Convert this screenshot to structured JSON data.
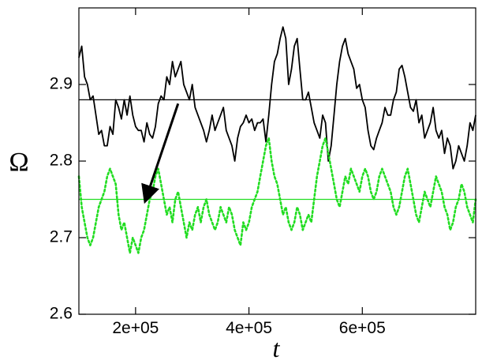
{
  "chart_data": {
    "type": "line",
    "xlabel": "t",
    "ylabel": "Ω",
    "xlim": [
      100000,
      800000
    ],
    "ylim": [
      2.6,
      3.0
    ],
    "x_ticks": [
      200000,
      400000,
      600000
    ],
    "x_tick_labels": [
      "2e+05",
      "4e+05",
      "6e+05"
    ],
    "y_ticks": [
      2.6,
      2.7,
      2.8,
      2.9
    ],
    "y_tick_labels": [
      "2.6",
      "2.7",
      "2.8",
      "2.9"
    ],
    "grid": false,
    "legend": "none",
    "series": [
      {
        "color": "#000000",
        "style": "solid",
        "x": [
          100000,
          105000,
          110000,
          115000,
          120000,
          125000,
          130000,
          135000,
          140000,
          145000,
          150000,
          155000,
          160000,
          165000,
          170000,
          175000,
          180000,
          185000,
          190000,
          195000,
          200000,
          205000,
          210000,
          215000,
          220000,
          225000,
          230000,
          235000,
          240000,
          245000,
          250000,
          255000,
          260000,
          265000,
          270000,
          275000,
          280000,
          285000,
          290000,
          295000,
          300000,
          305000,
          310000,
          315000,
          320000,
          325000,
          330000,
          335000,
          340000,
          345000,
          350000,
          355000,
          360000,
          365000,
          370000,
          375000,
          380000,
          385000,
          390000,
          395000,
          400000,
          405000,
          410000,
          415000,
          420000,
          425000,
          430000,
          435000,
          440000,
          445000,
          450000,
          455000,
          460000,
          465000,
          470000,
          475000,
          480000,
          485000,
          490000,
          495000,
          500000,
          505000,
          510000,
          515000,
          520000,
          525000,
          530000,
          535000,
          540000,
          545000,
          550000,
          555000,
          560000,
          565000,
          570000,
          575000,
          580000,
          585000,
          590000,
          595000,
          600000,
          605000,
          610000,
          615000,
          620000,
          625000,
          630000,
          635000,
          640000,
          645000,
          650000,
          655000,
          660000,
          665000,
          670000,
          675000,
          680000,
          685000,
          690000,
          695000,
          700000,
          705000,
          710000,
          715000,
          720000,
          725000,
          730000,
          735000,
          740000,
          745000,
          750000,
          755000,
          760000,
          765000,
          770000,
          775000,
          780000,
          785000,
          790000,
          795000,
          800000
        ],
        "y": [
          2.935,
          2.95,
          2.91,
          2.9,
          2.88,
          2.885,
          2.86,
          2.835,
          2.84,
          2.82,
          2.82,
          2.845,
          2.835,
          2.88,
          2.87,
          2.855,
          2.88,
          2.86,
          2.885,
          2.86,
          2.845,
          2.84,
          2.84,
          2.825,
          2.85,
          2.835,
          2.83,
          2.845,
          2.875,
          2.885,
          2.88,
          2.91,
          2.9,
          2.93,
          2.91,
          2.92,
          2.93,
          2.9,
          2.89,
          2.88,
          2.9,
          2.87,
          2.86,
          2.85,
          2.84,
          2.825,
          2.84,
          2.86,
          2.84,
          2.85,
          2.86,
          2.87,
          2.84,
          2.83,
          2.82,
          2.8,
          2.83,
          2.845,
          2.85,
          2.86,
          2.85,
          2.855,
          2.84,
          2.85,
          2.85,
          2.855,
          2.825,
          2.86,
          2.9,
          2.93,
          2.94,
          2.96,
          2.975,
          2.96,
          2.9,
          2.92,
          2.95,
          2.96,
          2.92,
          2.88,
          2.88,
          2.89,
          2.87,
          2.85,
          2.84,
          2.83,
          2.86,
          2.85,
          2.8,
          2.82,
          2.86,
          2.9,
          2.93,
          2.95,
          2.96,
          2.94,
          2.93,
          2.92,
          2.895,
          2.9,
          2.88,
          2.87,
          2.84,
          2.82,
          2.815,
          2.83,
          2.84,
          2.85,
          2.87,
          2.86,
          2.86,
          2.88,
          2.89,
          2.92,
          2.925,
          2.91,
          2.89,
          2.87,
          2.865,
          2.88,
          2.85,
          2.86,
          2.83,
          2.84,
          2.85,
          2.87,
          2.84,
          2.83,
          2.84,
          2.81,
          2.83,
          2.82,
          2.79,
          2.8,
          2.82,
          2.81,
          2.8,
          2.82,
          2.85,
          2.84,
          2.86
        ]
      },
      {
        "color": "#000000",
        "style": "solid",
        "x": [
          100000,
          800000
        ],
        "y": [
          2.88,
          2.88
        ]
      },
      {
        "color": "#22dd22",
        "style": "dotted",
        "x": [
          100000,
          105000,
          110000,
          115000,
          120000,
          125000,
          130000,
          135000,
          140000,
          145000,
          150000,
          155000,
          160000,
          165000,
          170000,
          175000,
          180000,
          185000,
          190000,
          195000,
          200000,
          205000,
          210000,
          215000,
          220000,
          225000,
          230000,
          235000,
          240000,
          245000,
          250000,
          255000,
          260000,
          265000,
          270000,
          275000,
          280000,
          285000,
          290000,
          295000,
          300000,
          305000,
          310000,
          315000,
          320000,
          325000,
          330000,
          335000,
          340000,
          345000,
          350000,
          355000,
          360000,
          365000,
          370000,
          375000,
          380000,
          385000,
          390000,
          395000,
          400000,
          405000,
          410000,
          415000,
          420000,
          425000,
          430000,
          435000,
          440000,
          445000,
          450000,
          455000,
          460000,
          465000,
          470000,
          475000,
          480000,
          485000,
          490000,
          495000,
          500000,
          505000,
          510000,
          515000,
          520000,
          525000,
          530000,
          535000,
          540000,
          545000,
          550000,
          555000,
          560000,
          565000,
          570000,
          575000,
          580000,
          585000,
          590000,
          595000,
          600000,
          605000,
          610000,
          615000,
          620000,
          625000,
          630000,
          635000,
          640000,
          645000,
          650000,
          655000,
          660000,
          665000,
          670000,
          675000,
          680000,
          685000,
          690000,
          695000,
          700000,
          705000,
          710000,
          715000,
          720000,
          725000,
          730000,
          735000,
          740000,
          745000,
          750000,
          755000,
          760000,
          765000,
          770000,
          775000,
          780000,
          785000,
          790000,
          795000,
          800000
        ],
        "y": [
          2.78,
          2.74,
          2.72,
          2.7,
          2.69,
          2.7,
          2.72,
          2.74,
          2.75,
          2.76,
          2.78,
          2.79,
          2.78,
          2.77,
          2.73,
          2.71,
          2.72,
          2.7,
          2.68,
          2.7,
          2.69,
          2.68,
          2.7,
          2.71,
          2.73,
          2.75,
          2.76,
          2.78,
          2.79,
          2.77,
          2.75,
          2.73,
          2.74,
          2.72,
          2.75,
          2.76,
          2.74,
          2.72,
          2.7,
          2.72,
          2.71,
          2.73,
          2.74,
          2.72,
          2.74,
          2.75,
          2.73,
          2.72,
          2.71,
          2.72,
          2.74,
          2.73,
          2.72,
          2.74,
          2.73,
          2.71,
          2.7,
          2.69,
          2.72,
          2.71,
          2.72,
          2.74,
          2.75,
          2.76,
          2.78,
          2.8,
          2.82,
          2.83,
          2.8,
          2.78,
          2.77,
          2.75,
          2.73,
          2.74,
          2.72,
          2.71,
          2.72,
          2.74,
          2.73,
          2.71,
          2.72,
          2.73,
          2.72,
          2.75,
          2.78,
          2.8,
          2.82,
          2.83,
          2.81,
          2.79,
          2.77,
          2.75,
          2.74,
          2.76,
          2.78,
          2.77,
          2.79,
          2.78,
          2.77,
          2.76,
          2.78,
          2.79,
          2.78,
          2.76,
          2.75,
          2.76,
          2.78,
          2.79,
          2.78,
          2.77,
          2.76,
          2.74,
          2.73,
          2.74,
          2.76,
          2.78,
          2.79,
          2.77,
          2.75,
          2.73,
          2.72,
          2.74,
          2.76,
          2.75,
          2.74,
          2.76,
          2.78,
          2.77,
          2.76,
          2.74,
          2.73,
          2.71,
          2.72,
          2.74,
          2.75,
          2.77,
          2.76,
          2.74,
          2.73,
          2.72,
          2.75
        ]
      },
      {
        "color": "#22dd22",
        "style": "solid",
        "x": [
          100000,
          800000
        ],
        "y": [
          2.75,
          2.75
        ]
      }
    ],
    "annotations": [
      {
        "type": "arrow",
        "color": "#000000",
        "from": [
          275000,
          2.875
        ],
        "to": [
          218000,
          2.75
        ]
      }
    ]
  }
}
